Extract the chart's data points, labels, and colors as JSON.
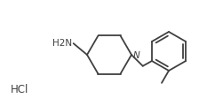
{
  "background_color": "#ffffff",
  "line_color": "#404040",
  "line_width": 1.3,
  "text_color": "#404040",
  "font_size": 7.5,
  "hcl_label": "HCl",
  "nh2_label": "H2N",
  "n_label": "N"
}
